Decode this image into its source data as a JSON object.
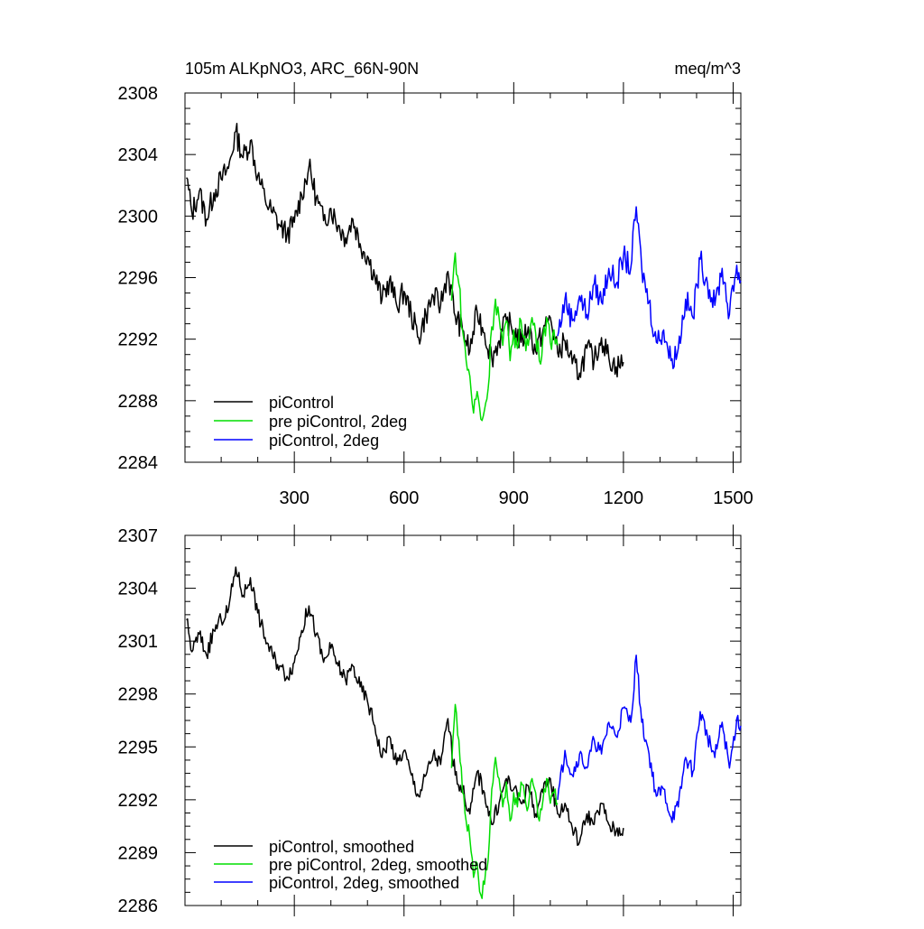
{
  "chart_data": [
    {
      "type": "line",
      "title": "105m ALKpNO3, ARC_66N-90N",
      "units": "meq/m^3",
      "xlim": [
        1,
        1521
      ],
      "ylim": [
        2284,
        2308
      ],
      "xticks": [
        300,
        600,
        900,
        1200,
        1500
      ],
      "yticks": [
        2284,
        2288,
        2292,
        2296,
        2300,
        2304,
        2308
      ],
      "legend_position": "bottom-left",
      "series": [
        {
          "name": "piControl",
          "color": "#000000",
          "x": [
            5,
            20,
            40,
            60,
            80,
            100,
            120,
            140,
            160,
            180,
            200,
            220,
            240,
            260,
            280,
            300,
            320,
            340,
            360,
            380,
            400,
            420,
            440,
            460,
            480,
            500,
            520,
            540,
            560,
            580,
            600,
            620,
            640,
            660,
            680,
            700,
            720,
            740,
            760,
            780,
            800,
            820,
            840,
            860,
            880,
            900,
            920,
            940,
            960,
            980,
            1000,
            1020,
            1040,
            1060,
            1080,
            1100,
            1120,
            1140,
            1160,
            1180,
            1200
          ],
          "y": [
            2302.5,
            2300.2,
            2301.6,
            2299.8,
            2301.5,
            2302.4,
            2303.1,
            2305.5,
            2303.8,
            2304.9,
            2302.6,
            2301.1,
            2300.2,
            2299.4,
            2298.8,
            2299.6,
            2301.4,
            2303.2,
            2301.2,
            2299.7,
            2300.5,
            2299.4,
            2298.6,
            2299.8,
            2298.2,
            2297.4,
            2296.1,
            2294.6,
            2295.8,
            2294.2,
            2295.1,
            2293.6,
            2292.1,
            2293.6,
            2294.8,
            2294.2,
            2296.4,
            2293.5,
            2292.6,
            2291.2,
            2293.8,
            2292.4,
            2290.8,
            2291.9,
            2293.2,
            2292.6,
            2291.8,
            2292.8,
            2291.2,
            2292.6,
            2293.4,
            2291.1,
            2291.9,
            2290.4,
            2289.8,
            2291.4,
            2290.6,
            2292.1,
            2290.8,
            2290.2,
            2290.5
          ]
        },
        {
          "name": "pre piControl, 2deg",
          "color": "#00dd00",
          "x": [
            730,
            740,
            750,
            760,
            770,
            780,
            790,
            800,
            810,
            820,
            830,
            840,
            850,
            860,
            870,
            880,
            890,
            900,
            910,
            920,
            930,
            940,
            950,
            960,
            970,
            980,
            990,
            1000,
            1010,
            1020
          ],
          "y": [
            2294.5,
            2297.6,
            2295.6,
            2292.6,
            2290.6,
            2289.6,
            2287.2,
            2288.6,
            2286.8,
            2287.4,
            2288.8,
            2292.8,
            2294.6,
            2293.4,
            2291.6,
            2293.2,
            2290.6,
            2292.6,
            2291.4,
            2293.2,
            2292.2,
            2291.6,
            2293.4,
            2292.4,
            2290.6,
            2292.2,
            2293.4,
            2291.8,
            2292.6,
            2291.6
          ]
        },
        {
          "name": "piControl, 2deg",
          "color": "#0000ff",
          "x": [
            1020,
            1040,
            1060,
            1080,
            1100,
            1120,
            1140,
            1160,
            1180,
            1200,
            1220,
            1235,
            1250,
            1270,
            1290,
            1310,
            1330,
            1350,
            1370,
            1390,
            1410,
            1430,
            1450,
            1470,
            1490,
            1510,
            1521
          ],
          "y": [
            2292.2,
            2294.6,
            2293.2,
            2294.8,
            2293.6,
            2295.6,
            2294.4,
            2296.6,
            2295.6,
            2297.4,
            2296.6,
            2300.6,
            2296.6,
            2294.4,
            2291.8,
            2292.6,
            2290.6,
            2291.4,
            2294.6,
            2293.4,
            2297.2,
            2295.6,
            2294.2,
            2296.6,
            2293.6,
            2296.8,
            2295.8
          ]
        }
      ]
    },
    {
      "type": "line",
      "title": "",
      "units": "",
      "xlim": [
        1,
        1521
      ],
      "ylim": [
        2286,
        2307
      ],
      "xticks": [
        300,
        600,
        900,
        1200,
        1500
      ],
      "yticks": [
        2286,
        2289,
        2292,
        2295,
        2298,
        2301,
        2304,
        2307
      ],
      "legend_position": "bottom-left",
      "series": [
        {
          "name": "piControl, smoothed",
          "color": "#000000",
          "x": [
            5,
            20,
            40,
            60,
            80,
            100,
            120,
            140,
            160,
            180,
            200,
            220,
            240,
            260,
            280,
            300,
            320,
            340,
            360,
            380,
            400,
            420,
            440,
            460,
            480,
            500,
            520,
            540,
            560,
            580,
            600,
            620,
            640,
            660,
            680,
            700,
            720,
            740,
            760,
            780,
            800,
            820,
            840,
            860,
            880,
            900,
            920,
            940,
            960,
            980,
            1000,
            1020,
            1040,
            1060,
            1080,
            1100,
            1120,
            1140,
            1160,
            1180,
            1200
          ],
          "y": [
            2302.2,
            2300.4,
            2301.4,
            2300.2,
            2301.6,
            2302.2,
            2302.8,
            2305.2,
            2303.6,
            2304.6,
            2302.6,
            2301.2,
            2300.2,
            2299.6,
            2299.0,
            2299.8,
            2301.6,
            2303.0,
            2301.4,
            2299.8,
            2300.6,
            2299.6,
            2298.8,
            2299.6,
            2298.4,
            2297.6,
            2296.2,
            2294.4,
            2295.6,
            2294.0,
            2294.8,
            2293.4,
            2292.2,
            2293.4,
            2294.6,
            2294.0,
            2296.6,
            2293.4,
            2292.6,
            2291.2,
            2293.6,
            2292.4,
            2290.6,
            2291.8,
            2293.2,
            2292.6,
            2291.8,
            2292.8,
            2291.2,
            2292.4,
            2293.2,
            2291.2,
            2291.8,
            2290.4,
            2289.6,
            2291.2,
            2290.6,
            2291.8,
            2290.6,
            2290.2,
            2290.4
          ]
        },
        {
          "name": "pre piControl, 2deg, smoothed",
          "color": "#00dd00",
          "x": [
            730,
            740,
            750,
            760,
            770,
            780,
            790,
            800,
            810,
            820,
            830,
            840,
            850,
            860,
            870,
            880,
            890,
            900,
            910,
            920,
            930,
            940,
            950,
            960,
            970,
            980,
            990,
            1000,
            1010,
            1020
          ],
          "y": [
            2293.8,
            2297.4,
            2295.4,
            2292.4,
            2290.8,
            2289.8,
            2287.6,
            2288.4,
            2286.6,
            2287.2,
            2288.6,
            2292.6,
            2294.4,
            2293.2,
            2291.6,
            2293.0,
            2290.8,
            2292.4,
            2291.6,
            2293.0,
            2292.2,
            2291.6,
            2293.2,
            2292.4,
            2290.8,
            2292.0,
            2293.2,
            2291.8,
            2292.4,
            2291.8
          ]
        },
        {
          "name": "piControl, 2deg, smoothed",
          "color": "#0000ff",
          "x": [
            1020,
            1040,
            1060,
            1080,
            1100,
            1120,
            1140,
            1160,
            1180,
            1200,
            1220,
            1235,
            1250,
            1270,
            1290,
            1310,
            1330,
            1350,
            1370,
            1390,
            1410,
            1430,
            1450,
            1470,
            1490,
            1510,
            1521
          ],
          "y": [
            2292.0,
            2294.8,
            2293.4,
            2294.6,
            2293.8,
            2295.4,
            2294.6,
            2296.4,
            2295.6,
            2297.2,
            2296.4,
            2300.2,
            2296.4,
            2294.6,
            2292.2,
            2292.6,
            2291.0,
            2291.6,
            2294.4,
            2293.6,
            2297.0,
            2295.6,
            2294.4,
            2296.4,
            2293.8,
            2296.6,
            2296.2
          ]
        }
      ]
    }
  ]
}
